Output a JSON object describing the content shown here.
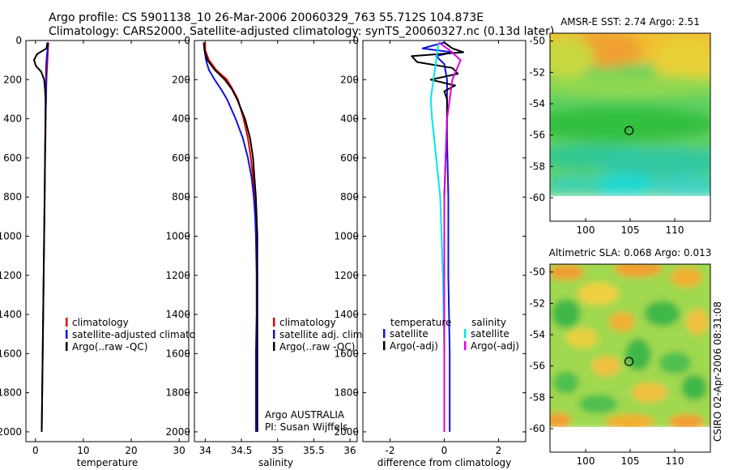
{
  "header": {
    "line1": "Argo profile: CS 5901138_10 26-Mar-2006 20060329_763 55.712S 104.873E",
    "line2": "Climatology: CARS2000. Satellite-adjusted climatology: synTS_20060327.nc (0.13d later)"
  },
  "side_stamp": "CSIRO 02-Apr-2006 08:31:08",
  "colors": {
    "red": "#e00000",
    "blue": "#1010e0",
    "black": "#000000",
    "cyan": "#00e8e8",
    "magenta": "#e000e0"
  },
  "chart_data": [
    {
      "type": "line",
      "id": "temperature",
      "xlabel": "temperature",
      "ylabel": "",
      "xlim": [
        -2,
        32
      ],
      "ylim": [
        2050,
        0
      ],
      "xticks": [
        0,
        10,
        20,
        30
      ],
      "yticks": [
        0,
        200,
        400,
        600,
        800,
        1000,
        1200,
        1400,
        1600,
        1800,
        2000
      ],
      "legend": [
        "climatology",
        "satellite-adjusted climatology",
        "Argo(..raw -QC)"
      ],
      "series": [
        {
          "name": "climatology",
          "color": "red",
          "depth": [
            10,
            50,
            100,
            150,
            200,
            300,
            400,
            500
          ],
          "values": [
            2.7,
            2.6,
            2.5,
            2.4,
            2.3,
            2.2,
            2.1,
            2.1
          ]
        },
        {
          "name": "satellite-adjusted climatology",
          "color": "blue",
          "depth": [
            10,
            50,
            100,
            150,
            200,
            300,
            400,
            600,
            800,
            1000,
            1200,
            1400,
            1600,
            1800,
            2000
          ],
          "values": [
            2.6,
            2.5,
            2.3,
            2.2,
            2.2,
            2.2,
            2.1,
            2.0,
            1.9,
            1.8,
            1.7,
            1.6,
            1.5,
            1.4,
            1.3
          ]
        },
        {
          "name": "Argo(..raw -QC)",
          "color": "black",
          "depth": [
            10,
            40,
            70,
            100,
            130,
            160,
            200,
            250,
            300,
            400,
            600,
            800,
            1000,
            1200,
            1400,
            1600,
            1800,
            2000
          ],
          "values": [
            2.5,
            2.3,
            0.3,
            -0.3,
            0.1,
            1.2,
            1.8,
            2.0,
            2.1,
            2.1,
            2.0,
            1.9,
            1.8,
            1.7,
            1.6,
            1.5,
            1.4,
            1.3
          ]
        }
      ]
    },
    {
      "type": "line",
      "id": "salinity",
      "xlabel": "salinity",
      "ylabel": "",
      "xlim": [
        33.85,
        36.1
      ],
      "ylim": [
        2050,
        0
      ],
      "xticks": [
        34,
        34.5,
        35,
        35.5,
        36
      ],
      "yticks": [
        0,
        200,
        400,
        600,
        800,
        1000,
        1200,
        1400,
        1600,
        1800,
        2000
      ],
      "legend": [
        "climatology",
        "satellite adj. clim.",
        "Argo(..raw -QC)"
      ],
      "annotation": [
        "Argo AUSTRALIA",
        "PI: Susan Wijffels"
      ],
      "series": [
        {
          "name": "climatology",
          "color": "red",
          "depth": [
            10,
            50,
            100,
            150,
            200,
            250,
            300,
            400,
            500,
            600,
            700,
            800,
            900,
            1000,
            1200,
            1400,
            1600,
            1800,
            2000
          ],
          "values": [
            34.0,
            34.0,
            34.05,
            34.15,
            34.3,
            34.38,
            34.45,
            34.53,
            34.59,
            34.63,
            34.66,
            34.68,
            34.7,
            34.71,
            34.72,
            34.72,
            34.72,
            34.72,
            34.72
          ]
        },
        {
          "name": "satellite adj. clim.",
          "color": "blue",
          "depth": [
            10,
            50,
            100,
            150,
            200,
            250,
            300,
            400,
            500,
            600,
            700,
            800,
            900,
            1000,
            1200,
            1400,
            1600,
            1800,
            2000
          ],
          "values": [
            33.98,
            33.99,
            34.01,
            34.05,
            34.13,
            34.22,
            34.3,
            34.42,
            34.52,
            34.59,
            34.64,
            34.67,
            34.69,
            34.7,
            34.71,
            34.71,
            34.7,
            34.7,
            34.7
          ]
        },
        {
          "name": "Argo(..raw -QC)",
          "color": "black",
          "depth": [
            10,
            50,
            100,
            150,
            200,
            250,
            300,
            400,
            500,
            600,
            700,
            800,
            900,
            1000,
            1200,
            1400,
            1600,
            1800,
            2000
          ],
          "values": [
            33.98,
            33.99,
            34.03,
            34.13,
            34.27,
            34.37,
            34.44,
            34.55,
            34.62,
            34.66,
            34.68,
            34.7,
            34.71,
            34.72,
            34.72,
            34.72,
            34.72,
            34.72,
            34.72
          ]
        }
      ]
    },
    {
      "type": "line",
      "id": "difference",
      "xlabel": "difference from climatology",
      "ylabel": "",
      "xlim": [
        -3.0,
        3.0
      ],
      "ylim": [
        2050,
        0
      ],
      "xticks": [
        -2,
        0,
        2
      ],
      "yticks": [
        0,
        200,
        400,
        600,
        800,
        1000,
        1200,
        1400,
        1600,
        1800,
        2000
      ],
      "legend_left_title": "temperature",
      "legend_right_title": "salinity",
      "legend_left": [
        "satellite",
        "Argo(-adj)"
      ],
      "legend_right": [
        "satellite",
        "Argo(-adj)"
      ],
      "series": [
        {
          "name": "temperature satellite",
          "color": "blue",
          "depth": [
            10,
            40,
            60,
            80,
            120,
            200,
            300,
            500,
            800,
            1200,
            1600,
            2000
          ],
          "values": [
            0.0,
            -0.8,
            0.3,
            -0.3,
            0.0,
            0.1,
            0.1,
            0.1,
            0.15,
            0.15,
            0.2,
            0.2
          ]
        },
        {
          "name": "temperature Argo(-adj)",
          "color": "black",
          "depth": [
            10,
            40,
            60,
            80,
            110,
            140,
            170,
            200,
            230,
            260,
            300,
            400,
            600,
            800,
            1200,
            1600,
            2000
          ],
          "values": [
            0.0,
            0.3,
            0.7,
            -1.2,
            -1.0,
            0.3,
            0.5,
            -0.5,
            0.4,
            0.0,
            0.1,
            0.1,
            0.05,
            0.0,
            0.0,
            0.0,
            0.0
          ]
        },
        {
          "name": "salinity satellite",
          "color": "cyan",
          "depth": [
            10,
            50,
            100,
            200,
            300,
            400,
            600,
            800,
            1200,
            1600,
            2000
          ],
          "values": [
            -0.2,
            -0.25,
            -0.3,
            -0.4,
            -0.5,
            -0.45,
            -0.3,
            -0.15,
            -0.05,
            0.0,
            0.0
          ]
        },
        {
          "name": "salinity Argo(-adj)",
          "color": "magenta",
          "depth": [
            10,
            50,
            100,
            200,
            300,
            400,
            600,
            800,
            1200,
            1600,
            2000
          ],
          "values": [
            -0.2,
            0.2,
            0.6,
            0.3,
            0.2,
            0.1,
            0.05,
            0.0,
            0.0,
            0.0,
            0.0
          ]
        }
      ]
    },
    {
      "type": "heatmap",
      "id": "sst",
      "title": "AMSR-E SST: 2.74 Argo: 2.51",
      "xlim": [
        96,
        114
      ],
      "ylim": [
        -61.5,
        -49.5
      ],
      "xticks": [
        100,
        105,
        110
      ],
      "yticks": [
        -50,
        -52,
        -54,
        -56,
        -58,
        -60
      ],
      "marker": {
        "lon": 104.873,
        "lat": -55.712
      }
    },
    {
      "type": "heatmap",
      "id": "sla",
      "title": "Altimetric SLA: 0.068 Argo: 0.013",
      "xlim": [
        96,
        114
      ],
      "ylim": [
        -61.5,
        -49.5
      ],
      "xticks": [
        100,
        105,
        110
      ],
      "yticks": [
        -50,
        -52,
        -54,
        -56,
        -58,
        -60
      ],
      "marker": {
        "lon": 104.873,
        "lat": -55.712
      }
    }
  ]
}
